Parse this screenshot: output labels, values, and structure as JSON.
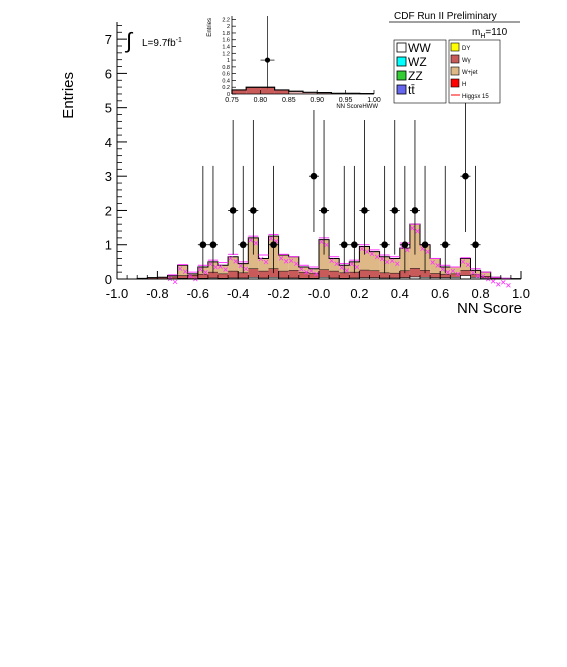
{
  "chart_data": [
    {
      "type": "bar",
      "panel": "main",
      "xlabel": "NN Score",
      "ylabel": "Entries",
      "xlim": [
        -1.0,
        1.0
      ],
      "ylim": [
        0,
        7.5
      ],
      "x_ticks": [
        "-1.0",
        "-0.8",
        "-0.6",
        "-0.4",
        "-0.2",
        "-0.0",
        "0.2",
        "0.4",
        "0.6",
        "0.8",
        "1.0"
      ],
      "x_tick_values": [
        -1.0,
        -0.8,
        -0.6,
        -0.4,
        -0.2,
        0.0,
        0.2,
        0.4,
        0.6,
        0.8,
        1.0
      ],
      "y_ticks": [
        "0",
        "1",
        "2",
        "3",
        "4",
        "5",
        "6",
        "7"
      ],
      "y_tick_values": [
        0,
        1,
        2,
        3,
        4,
        5,
        6,
        7
      ],
      "bin_edges": [
        -1.0,
        -0.95,
        -0.9,
        -0.85,
        -0.8,
        -0.75,
        -0.7,
        -0.65,
        -0.6,
        -0.55,
        -0.5,
        -0.45,
        -0.4,
        -0.35,
        -0.3,
        -0.25,
        -0.2,
        -0.15,
        -0.1,
        -0.05,
        0.0,
        0.05,
        0.1,
        0.15,
        0.2,
        0.25,
        0.3,
        0.35,
        0.4,
        0.45,
        0.5,
        0.55,
        0.6,
        0.65,
        0.7,
        0.75,
        0.8,
        0.85,
        0.9,
        0.95,
        1.0
      ],
      "stack_totals": [
        0,
        0,
        0.02,
        0.04,
        0.05,
        0.1,
        0.4,
        0.15,
        0.35,
        0.5,
        0.4,
        0.65,
        0.45,
        1.2,
        0.6,
        1.25,
        0.7,
        0.65,
        0.35,
        0.3,
        1.15,
        0.6,
        0.4,
        0.5,
        0.95,
        0.8,
        0.65,
        0.6,
        0.9,
        1.6,
        1.0,
        0.6,
        0.35,
        0.35,
        0.6,
        0.25,
        0.2,
        0.05,
        0.02,
        0.01
      ],
      "series": [
        {
          "name": "WW",
          "color": "#ffffff",
          "values": [
            0,
            0,
            0,
            0,
            0,
            0,
            0.02,
            0.01,
            0.02,
            0.03,
            0.02,
            0.03,
            0.03,
            0.05,
            0.03,
            0.05,
            0.03,
            0.03,
            0.02,
            0.02,
            0.05,
            0.03,
            0.02,
            0.03,
            0.04,
            0.04,
            0.03,
            0.03,
            0.04,
            0.06,
            0.05,
            0.04,
            0.04,
            0.05,
            0.1,
            0.05,
            0.03,
            0.01,
            0,
            0
          ]
        },
        {
          "name": "WZ",
          "color": "#00ffff",
          "values": [
            0,
            0,
            0,
            0,
            0,
            0,
            0,
            0,
            0,
            0,
            0,
            0,
            0,
            0,
            0,
            0,
            0,
            0,
            0,
            0,
            0,
            0,
            0,
            0,
            0,
            0,
            0,
            0,
            0,
            0,
            0,
            0,
            0,
            0,
            0,
            0,
            0,
            0,
            0,
            0
          ]
        },
        {
          "name": "ZZ",
          "color": "#33cc33",
          "values": [
            0,
            0,
            0,
            0,
            0,
            0,
            0,
            0,
            0,
            0,
            0,
            0,
            0,
            0,
            0,
            0,
            0,
            0,
            0,
            0,
            0,
            0,
            0,
            0,
            0,
            0,
            0,
            0,
            0,
            0,
            0,
            0,
            0,
            0,
            0,
            0,
            0,
            0,
            0,
            0
          ]
        },
        {
          "name": "tt̄",
          "color": "#6666ee",
          "values": [
            0,
            0,
            0,
            0,
            0,
            0,
            0,
            0,
            0,
            0,
            0,
            0,
            0,
            0,
            0,
            0,
            0,
            0,
            0,
            0,
            0,
            0,
            0,
            0,
            0,
            0,
            0,
            0,
            0,
            0,
            0,
            0,
            0,
            0,
            0,
            0,
            0,
            0,
            0,
            0
          ]
        },
        {
          "name": "DY",
          "color": "#ffff00",
          "values": [
            0,
            0,
            0,
            0,
            0,
            0,
            0,
            0,
            0,
            0,
            0,
            0,
            0,
            0,
            0,
            0,
            0,
            0,
            0,
            0,
            0,
            0,
            0,
            0,
            0,
            0,
            0,
            0,
            0,
            0,
            0,
            0,
            0,
            0,
            0,
            0,
            0,
            0,
            0,
            0
          ]
        },
        {
          "name": "Wγ",
          "color": "#c85a5a",
          "values": [
            0,
            0,
            0.02,
            0.04,
            0.05,
            0.06,
            0.08,
            0.1,
            0.12,
            0.17,
            0.13,
            0.2,
            0.15,
            0.25,
            0.2,
            0.25,
            0.2,
            0.22,
            0.17,
            0.14,
            0.22,
            0.2,
            0.16,
            0.17,
            0.22,
            0.2,
            0.15,
            0.14,
            0.2,
            0.25,
            0.2,
            0.12,
            0.1,
            0.1,
            0.15,
            0.08,
            0.05,
            0.02,
            0.01,
            0.01
          ]
        },
        {
          "name": "W+jet",
          "color": "#deb887",
          "values": [
            0,
            0,
            0,
            0,
            0,
            0.04,
            0.3,
            0.04,
            0.21,
            0.3,
            0.25,
            0.42,
            0.27,
            0.9,
            0.37,
            0.95,
            0.47,
            0.4,
            0.16,
            0.14,
            0.88,
            0.37,
            0.22,
            0.3,
            0.69,
            0.56,
            0.47,
            0.43,
            0.66,
            1.29,
            0.75,
            0.44,
            0.21,
            0.2,
            0.35,
            0.12,
            0.12,
            0.02,
            0.01,
            0
          ]
        },
        {
          "name": "H",
          "color": "#ff0000",
          "values": [
            0,
            0,
            0,
            0,
            0,
            0,
            0,
            0,
            0,
            0,
            0,
            0,
            0,
            0,
            0,
            0,
            0,
            0,
            0,
            0,
            0,
            0,
            0,
            0,
            0,
            0,
            0,
            0,
            0,
            0,
            0,
            0,
            0,
            0,
            0,
            0,
            0,
            0,
            0,
            0
          ]
        },
        {
          "name": "Higgsx 15",
          "color": "#ff33ff",
          "values": [
            0,
            0,
            0,
            0,
            0,
            0.12,
            0.42,
            0.2,
            0.4,
            0.55,
            0.48,
            0.72,
            0.5,
            1.25,
            0.7,
            1.3,
            0.72,
            0.65,
            0.4,
            0.35,
            1.2,
            0.65,
            0.45,
            0.55,
            1.0,
            0.85,
            0.7,
            0.65,
            1.05,
            1.6,
            1.0,
            0.6,
            0.4,
            0.35,
            0.62,
            0.3,
            0.2,
            0.05,
            0.02,
            0
          ]
        }
      ],
      "data_points": {
        "name": "Data",
        "x": [
          -0.575,
          -0.525,
          -0.425,
          -0.375,
          -0.325,
          -0.225,
          -0.025,
          0.025,
          0.125,
          0.175,
          0.225,
          0.325,
          0.375,
          0.425,
          0.475,
          0.525,
          0.625,
          0.725,
          0.775
        ],
        "y": [
          1,
          1,
          2,
          1,
          2,
          1,
          3,
          2,
          1,
          1,
          2,
          1,
          2,
          1,
          2,
          1,
          1,
          3,
          1
        ],
        "err_low": [
          0.83,
          0.83,
          1.29,
          0.83,
          1.29,
          0.83,
          1.63,
          1.29,
          0.83,
          0.83,
          1.29,
          0.83,
          1.29,
          0.83,
          1.29,
          0.83,
          0.83,
          1.63,
          0.83
        ],
        "err_high": [
          2.3,
          2.3,
          2.64,
          2.3,
          2.64,
          2.3,
          2.92,
          2.64,
          2.3,
          2.3,
          2.64,
          2.3,
          2.64,
          2.3,
          2.64,
          2.3,
          2.3,
          2.92,
          2.3
        ]
      }
    },
    {
      "type": "bar",
      "panel": "inset",
      "xlabel": "NN ScoreHWW",
      "ylabel": "Entries",
      "xlim": [
        0.75,
        1.0
      ],
      "ylim": [
        0,
        2.3
      ],
      "x_ticks": [
        "0.75",
        "0.80",
        "0.85",
        "0.90",
        "0.95",
        "1.00"
      ],
      "x_tick_values": [
        0.75,
        0.8,
        0.85,
        0.9,
        0.95,
        1.0
      ],
      "y_ticks": [
        "0",
        "0.2",
        "0.4",
        "0.6",
        "0.8",
        "1",
        "1.2",
        "1.4",
        "1.6",
        "1.8",
        "2",
        "2.2"
      ],
      "y_tick_values": [
        0,
        0.2,
        0.4,
        0.6,
        0.8,
        1.0,
        1.2,
        1.4,
        1.6,
        1.8,
        2.0,
        2.2
      ],
      "bin_edges": [
        0.75,
        0.775,
        0.8,
        0.825,
        0.85,
        0.875,
        0.9,
        0.925,
        0.95,
        0.975,
        1.0
      ],
      "stack_totals": [
        0.12,
        0.2,
        0.2,
        0.12,
        0.08,
        0.05,
        0.04,
        0.02,
        0.02,
        0.01
      ],
      "data_points": {
        "x": [
          0.8125
        ],
        "y": [
          1
        ],
        "err_low": [
          0.83
        ],
        "err_high": [
          2.3
        ]
      }
    }
  ],
  "labels": {
    "luminosity_integral": "∫",
    "luminosity": "L=9.7fb",
    "luminosity_exp": "-1",
    "experiment": "CDF Run II Preliminary",
    "mass_label_m": "m",
    "mass_label_sub": "H",
    "mass_label_val": "=110"
  },
  "legend_left": [
    {
      "label": "WW",
      "color": "#ffffff"
    },
    {
      "label": "WZ",
      "color": "#00ffff"
    },
    {
      "label": "ZZ",
      "color": "#33cc33"
    },
    {
      "label": "tt̄",
      "color": "#6666ee"
    }
  ],
  "legend_right": [
    {
      "label": "DY",
      "color": "#ffff00",
      "kind": "box"
    },
    {
      "label": "Wγ",
      "color": "#c85a5a",
      "kind": "box"
    },
    {
      "label": "W+jet",
      "color": "#deb887",
      "kind": "box"
    },
    {
      "label": "H",
      "color": "#ff0000",
      "kind": "box"
    },
    {
      "label": "Higgsx 15",
      "color": "#ff0000",
      "kind": "line"
    }
  ]
}
